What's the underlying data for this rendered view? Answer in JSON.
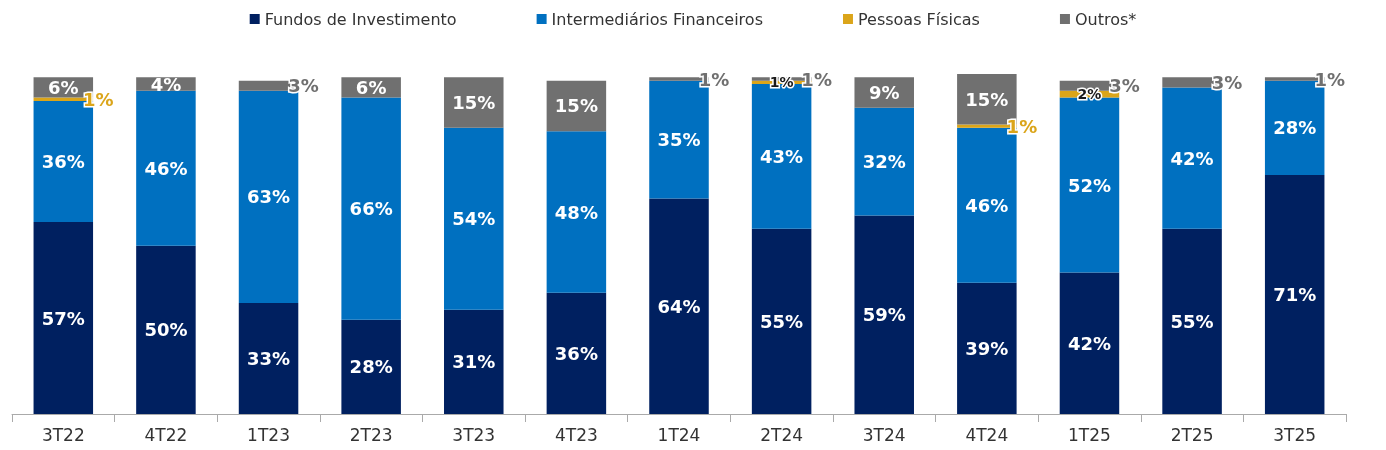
{
  "chart_data": {
    "type": "bar",
    "stacked": true,
    "categories": [
      "3T22",
      "4T22",
      "1T23",
      "2T23",
      "3T23",
      "4T23",
      "1T24",
      "2T24",
      "3T24",
      "4T24",
      "1T25",
      "2T25",
      "3T25"
    ],
    "series": [
      {
        "name": "Fundos de Investimento",
        "color": "#002060",
        "values": [
          57,
          50,
          33,
          28,
          31,
          36,
          64,
          55,
          59,
          39,
          42,
          55,
          71
        ],
        "value_labels": [
          "57%",
          "50%",
          "33%",
          "28%",
          "31%",
          "36%",
          "64%",
          "55%",
          "59%",
          "39%",
          "42%",
          "55%",
          "71%"
        ]
      },
      {
        "name": "Intermediários Financeiros",
        "color": "#0070c0",
        "values": [
          36,
          46,
          63,
          66,
          54,
          48,
          35,
          43,
          32,
          46,
          52,
          42,
          28
        ],
        "value_labels": [
          "36%",
          "46%",
          "63%",
          "66%",
          "54%",
          "48%",
          "35%",
          "43%",
          "32%",
          "46%",
          "52%",
          "42%",
          "28%"
        ]
      },
      {
        "name": "Pessoas Físicas",
        "color": "#dba51a",
        "values": [
          1,
          null,
          null,
          null,
          null,
          null,
          null,
          1,
          null,
          1,
          2,
          null,
          null
        ],
        "value_labels": [
          "1%",
          null,
          null,
          null,
          null,
          null,
          null,
          "1%",
          null,
          "1%",
          "2%",
          null,
          null
        ]
      },
      {
        "name": "Outros*",
        "color": "#707070",
        "values": [
          6,
          4,
          3,
          6,
          15,
          15,
          1,
          1,
          9,
          15,
          3,
          3,
          1
        ],
        "value_labels": [
          "6%",
          "4%",
          "3%",
          "6%",
          "15%",
          "15%",
          "1%",
          "1%",
          "9%",
          "15%",
          "3%",
          "3%",
          "1%"
        ]
      }
    ],
    "ylim": [
      0,
      101
    ],
    "tick_labels": "x",
    "grid": false,
    "legend": "top"
  }
}
